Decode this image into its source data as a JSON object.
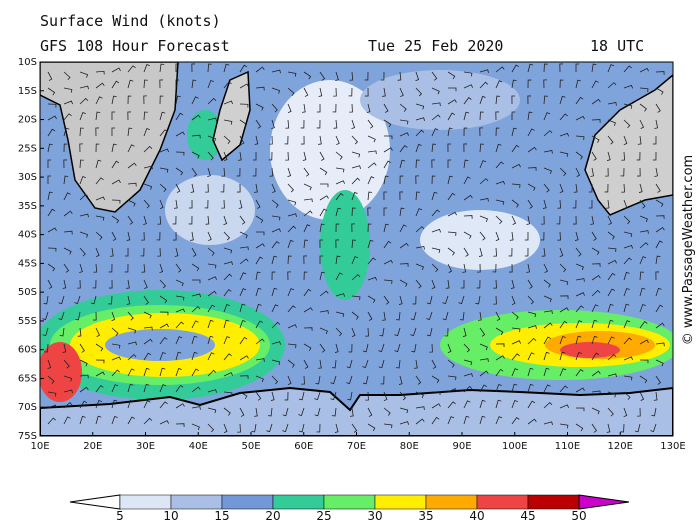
{
  "header": {
    "title": "Surface Wind (knots)",
    "subtitle": "GFS 108 Hour Forecast",
    "date": "Tue 25 Feb 2020",
    "time": "18 UTC"
  },
  "map": {
    "lat_labels": [
      "10S",
      "15S",
      "20S",
      "25S",
      "30S",
      "35S",
      "40S",
      "45S",
      "50S",
      "55S",
      "60S",
      "65S",
      "70S",
      "75S"
    ],
    "lon_labels": [
      "10E",
      "20E",
      "30E",
      "40E",
      "50E",
      "60E",
      "70E",
      "80E",
      "90E",
      "100E",
      "110E",
      "120E",
      "130E"
    ]
  },
  "colorbar": {
    "labels": [
      "5",
      "10",
      "15",
      "20",
      "25",
      "30",
      "35",
      "40",
      "45",
      "50"
    ]
  },
  "copyright": "© www.PassageWeather.com"
}
